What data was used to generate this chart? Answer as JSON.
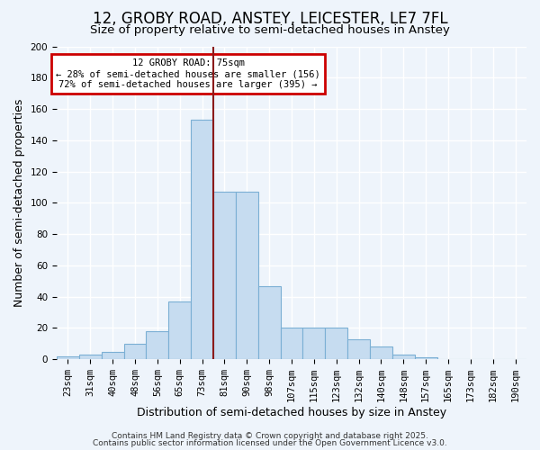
{
  "title": "12, GROBY ROAD, ANSTEY, LEICESTER, LE7 7FL",
  "subtitle": "Size of property relative to semi-detached houses in Anstey",
  "xlabel": "Distribution of semi-detached houses by size in Anstey",
  "ylabel": "Number of semi-detached properties",
  "bar_labels": [
    "23sqm",
    "31sqm",
    "40sqm",
    "48sqm",
    "56sqm",
    "65sqm",
    "73sqm",
    "81sqm",
    "90sqm",
    "98sqm",
    "107sqm",
    "115sqm",
    "123sqm",
    "132sqm",
    "140sqm",
    "148sqm",
    "157sqm",
    "165sqm",
    "173sqm",
    "182sqm",
    "190sqm"
  ],
  "bar_values": [
    2,
    3,
    5,
    10,
    18,
    37,
    153,
    107,
    107,
    47,
    20,
    20,
    20,
    13,
    8,
    3,
    1,
    0,
    0,
    0,
    0
  ],
  "bar_color": "#c6dcf0",
  "bar_edge_color": "#7bafd4",
  "vline_color": "#8b1a1a",
  "annotation_title": "12 GROBY ROAD: 75sqm",
  "annotation_line1": "← 28% of semi-detached houses are smaller (156)",
  "annotation_line2": "72% of semi-detached houses are larger (395) →",
  "annotation_box_color": "#cc0000",
  "annotation_bg_color": "white",
  "ylim": [
    0,
    200
  ],
  "yticks": [
    0,
    20,
    40,
    60,
    80,
    100,
    120,
    140,
    160,
    180,
    200
  ],
  "footer1": "Contains HM Land Registry data © Crown copyright and database right 2025.",
  "footer2": "Contains public sector information licensed under the Open Government Licence v3.0.",
  "bg_color": "#eef4fb",
  "grid_color": "white",
  "title_fontsize": 12,
  "subtitle_fontsize": 9.5,
  "axis_label_fontsize": 9,
  "tick_fontsize": 7.5,
  "footer_fontsize": 6.5
}
